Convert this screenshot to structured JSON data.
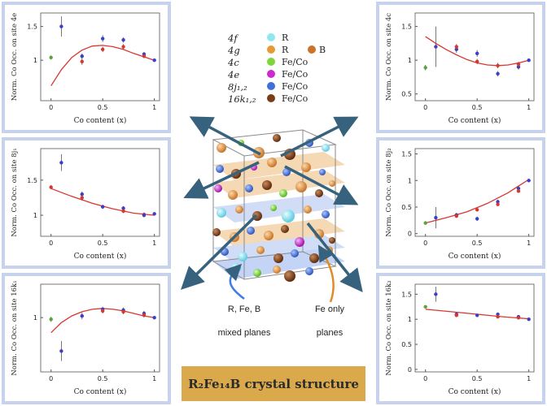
{
  "title": "R₂Fe₁₄B crystal structure",
  "legend": {
    "rows": [
      {
        "site": "4f",
        "label": "R",
        "color": "#8fe6f0"
      },
      {
        "site": "4g",
        "label": "R",
        "color": "#e79a35",
        "label2": "B",
        "color2": "#c9742a"
      },
      {
        "site": "4c",
        "label": "Fe/Co",
        "color": "#7fd63c"
      },
      {
        "site": "4e",
        "label": "Fe/Co",
        "color": "#cc2ad0"
      },
      {
        "site": "8j₁,₂",
        "label": "Fe/Co",
        "color": "#3f6fd8"
      },
      {
        "site": "16k₁,₂",
        "label": "Fe/Co",
        "color": "#7a3c16"
      }
    ]
  },
  "plane_labels": {
    "mixed_line1": "R, Fe, B",
    "mixed_line2": "mixed planes",
    "fe_line1": "Fe only",
    "fe_line2": "planes"
  },
  "colors": {
    "panel_border": "#c7d3ec",
    "fit": "#d9362f",
    "red": "#d9362f",
    "blue": "#3b3fc9",
    "green": "#5aa23c",
    "title_bg": "#d9a94c",
    "arrow": "#37627d"
  },
  "chart_data": [
    {
      "id": "4e",
      "type": "scatter",
      "ylabel": "Norm. Co Occ. on site 4e",
      "xlabel": "Co content (x)",
      "xticks": [
        "0",
        "0.5",
        "1"
      ],
      "yticks": [
        "1",
        "1.5"
      ],
      "ylim": [
        0.4,
        1.7
      ],
      "xlim": [
        -0.1,
        1.05
      ],
      "fit": [
        [
          0,
          0.62
        ],
        [
          0.1,
          0.86
        ],
        [
          0.2,
          1.04
        ],
        [
          0.3,
          1.15
        ],
        [
          0.4,
          1.21
        ],
        [
          0.5,
          1.22
        ],
        [
          0.6,
          1.2
        ],
        [
          0.7,
          1.16
        ],
        [
          0.8,
          1.1
        ],
        [
          0.9,
          1.05
        ],
        [
          1,
          1.0
        ]
      ],
      "points": [
        {
          "x": 0,
          "y": 1.04,
          "c": "green",
          "e": 0.03
        },
        {
          "x": 0.1,
          "y": 1.5,
          "c": "blue",
          "e": 0.15
        },
        {
          "x": 0.3,
          "y": 0.98,
          "c": "red",
          "e": 0.05
        },
        {
          "x": 0.3,
          "y": 1.06,
          "c": "blue",
          "e": 0.04
        },
        {
          "x": 0.5,
          "y": 1.32,
          "c": "blue",
          "e": 0.05
        },
        {
          "x": 0.5,
          "y": 1.16,
          "c": "red",
          "e": 0.04
        },
        {
          "x": 0.7,
          "y": 1.3,
          "c": "blue",
          "e": 0.04
        },
        {
          "x": 0.7,
          "y": 1.2,
          "c": "red",
          "e": 0.04
        },
        {
          "x": 0.9,
          "y": 1.09,
          "c": "blue",
          "e": 0.03
        },
        {
          "x": 0.9,
          "y": 1.06,
          "c": "red",
          "e": 0.03
        },
        {
          "x": 1,
          "y": 1.0,
          "c": "blue",
          "e": 0.02
        }
      ]
    },
    {
      "id": "8j1",
      "type": "scatter",
      "ylabel": "Norm. Co Occ. on site 8j₁",
      "xlabel": "Co content (x)",
      "xticks": [
        "0",
        "0.5",
        "1"
      ],
      "yticks": [
        "1",
        "1.5"
      ],
      "ylim": [
        0.7,
        1.95
      ],
      "xlim": [
        -0.1,
        1.05
      ],
      "fit": [
        [
          0,
          1.38
        ],
        [
          0.2,
          1.27
        ],
        [
          0.4,
          1.17
        ],
        [
          0.6,
          1.09
        ],
        [
          0.8,
          1.03
        ],
        [
          1,
          1.0
        ]
      ],
      "points": [
        {
          "x": 0,
          "y": 1.4,
          "c": "red",
          "e": 0.03
        },
        {
          "x": 0.1,
          "y": 1.75,
          "c": "blue",
          "e": 0.12
        },
        {
          "x": 0.3,
          "y": 1.3,
          "c": "blue",
          "e": 0.04
        },
        {
          "x": 0.3,
          "y": 1.25,
          "c": "red",
          "e": 0.04
        },
        {
          "x": 0.5,
          "y": 1.12,
          "c": "blue",
          "e": 0.03
        },
        {
          "x": 0.7,
          "y": 1.1,
          "c": "blue",
          "e": 0.03
        },
        {
          "x": 0.7,
          "y": 1.06,
          "c": "red",
          "e": 0.03
        },
        {
          "x": 0.9,
          "y": 1.01,
          "c": "red",
          "e": 0.03
        },
        {
          "x": 0.9,
          "y": 1.0,
          "c": "blue",
          "e": 0.03
        },
        {
          "x": 1,
          "y": 1.02,
          "c": "blue",
          "e": 0.02
        }
      ]
    },
    {
      "id": "16k1",
      "type": "scatter",
      "ylabel": "Norm. Co Occ. on site 16k₁",
      "xlabel": "Co content (x)",
      "xticks": [
        "0",
        "0.5",
        "1"
      ],
      "yticks": [
        "1"
      ],
      "ylim": [
        0.35,
        1.4
      ],
      "xlim": [
        -0.1,
        1.05
      ],
      "fit": [
        [
          0,
          0.82
        ],
        [
          0.1,
          0.94
        ],
        [
          0.2,
          1.02
        ],
        [
          0.3,
          1.07
        ],
        [
          0.4,
          1.1
        ],
        [
          0.5,
          1.11
        ],
        [
          0.6,
          1.1
        ],
        [
          0.7,
          1.08
        ],
        [
          0.8,
          1.05
        ],
        [
          0.9,
          1.02
        ],
        [
          1,
          1.0
        ]
      ],
      "points": [
        {
          "x": 0,
          "y": 0.98,
          "c": "green",
          "e": 0.03
        },
        {
          "x": 0.1,
          "y": 0.6,
          "c": "blue",
          "e": 0.12
        },
        {
          "x": 0.3,
          "y": 1.02,
          "c": "blue",
          "e": 0.04
        },
        {
          "x": 0.5,
          "y": 1.1,
          "c": "blue",
          "e": 0.03
        },
        {
          "x": 0.5,
          "y": 1.08,
          "c": "red",
          "e": 0.03
        },
        {
          "x": 0.7,
          "y": 1.09,
          "c": "blue",
          "e": 0.03
        },
        {
          "x": 0.7,
          "y": 1.07,
          "c": "red",
          "e": 0.03
        },
        {
          "x": 0.9,
          "y": 1.05,
          "c": "blue",
          "e": 0.03
        },
        {
          "x": 0.9,
          "y": 1.03,
          "c": "red",
          "e": 0.03
        },
        {
          "x": 1,
          "y": 1.0,
          "c": "blue",
          "e": 0.02
        }
      ]
    },
    {
      "id": "4c",
      "type": "scatter",
      "ylabel": "Norm. Co Occ. on site 4c",
      "xlabel": "Co content (x)",
      "xticks": [
        "0",
        "0.5",
        "1"
      ],
      "yticks": [
        "0.5",
        "1",
        "1.5"
      ],
      "ylim": [
        0.4,
        1.7
      ],
      "xlim": [
        -0.1,
        1.05
      ],
      "fit": [
        [
          0,
          1.35
        ],
        [
          0.1,
          1.25
        ],
        [
          0.2,
          1.16
        ],
        [
          0.3,
          1.08
        ],
        [
          0.4,
          1.01
        ],
        [
          0.5,
          0.96
        ],
        [
          0.6,
          0.93
        ],
        [
          0.7,
          0.92
        ],
        [
          0.8,
          0.93
        ],
        [
          0.9,
          0.96
        ],
        [
          1,
          1.0
        ]
      ],
      "points": [
        {
          "x": 0,
          "y": 0.89,
          "c": "green",
          "e": 0.04
        },
        {
          "x": 0.1,
          "y": 1.2,
          "c": "blue",
          "e": 0.3
        },
        {
          "x": 0.3,
          "y": 1.16,
          "c": "blue",
          "e": 0.05
        },
        {
          "x": 0.3,
          "y": 1.2,
          "c": "red",
          "e": 0.04
        },
        {
          "x": 0.5,
          "y": 1.1,
          "c": "blue",
          "e": 0.05
        },
        {
          "x": 0.5,
          "y": 0.98,
          "c": "red",
          "e": 0.04
        },
        {
          "x": 0.7,
          "y": 0.8,
          "c": "blue",
          "e": 0.04
        },
        {
          "x": 0.7,
          "y": 0.92,
          "c": "red",
          "e": 0.04
        },
        {
          "x": 0.9,
          "y": 0.9,
          "c": "blue",
          "e": 0.04
        },
        {
          "x": 0.9,
          "y": 0.94,
          "c": "red",
          "e": 0.04
        },
        {
          "x": 1,
          "y": 1.0,
          "c": "blue",
          "e": 0.02
        }
      ]
    },
    {
      "id": "8j2",
      "type": "scatter",
      "ylabel": "Norm. Co Occ. on site 8j₂",
      "xlabel": "Co content (x)",
      "xticks": [
        "0",
        "0.5",
        "1"
      ],
      "yticks": [
        "0",
        "0.5",
        "1",
        "1.5"
      ],
      "ylim": [
        -0.05,
        1.6
      ],
      "xlim": [
        -0.1,
        1.05
      ],
      "fit": [
        [
          0,
          0.2
        ],
        [
          0.2,
          0.3
        ],
        [
          0.4,
          0.41
        ],
        [
          0.6,
          0.57
        ],
        [
          0.8,
          0.77
        ],
        [
          1,
          1.02
        ]
      ],
      "points": [
        {
          "x": 0,
          "y": 0.2,
          "c": "green",
          "e": 0.03
        },
        {
          "x": 0.1,
          "y": 0.3,
          "c": "blue",
          "e": 0.2
        },
        {
          "x": 0.3,
          "y": 0.35,
          "c": "blue",
          "e": 0.04
        },
        {
          "x": 0.3,
          "y": 0.33,
          "c": "red",
          "e": 0.03
        },
        {
          "x": 0.5,
          "y": 0.45,
          "c": "red",
          "e": 0.03
        },
        {
          "x": 0.5,
          "y": 0.28,
          "c": "blue",
          "e": 0.04
        },
        {
          "x": 0.7,
          "y": 0.6,
          "c": "blue",
          "e": 0.04
        },
        {
          "x": 0.7,
          "y": 0.55,
          "c": "red",
          "e": 0.03
        },
        {
          "x": 0.9,
          "y": 0.85,
          "c": "blue",
          "e": 0.04
        },
        {
          "x": 0.9,
          "y": 0.8,
          "c": "red",
          "e": 0.03
        },
        {
          "x": 1,
          "y": 1.0,
          "c": "blue",
          "e": 0.02
        }
      ]
    },
    {
      "id": "16k2",
      "type": "scatter",
      "ylabel": "Norm. Co Occ. on site 16k₂",
      "xlabel": "Co content (x)",
      "xticks": [
        "0",
        "0.5",
        "1"
      ],
      "yticks": [
        "0",
        "0.5",
        "1",
        "1.5"
      ],
      "ylim": [
        -0.05,
        1.7
      ],
      "xlim": [
        -0.1,
        1.05
      ],
      "fit": [
        [
          0,
          1.2
        ],
        [
          0.25,
          1.15
        ],
        [
          0.5,
          1.1
        ],
        [
          0.75,
          1.05
        ],
        [
          1,
          1.01
        ]
      ],
      "points": [
        {
          "x": 0,
          "y": 1.25,
          "c": "green",
          "e": 0.03
        },
        {
          "x": 0.1,
          "y": 1.5,
          "c": "blue",
          "e": 0.15
        },
        {
          "x": 0.3,
          "y": 1.1,
          "c": "blue",
          "e": 0.03
        },
        {
          "x": 0.3,
          "y": 1.08,
          "c": "red",
          "e": 0.03
        },
        {
          "x": 0.5,
          "y": 1.08,
          "c": "blue",
          "e": 0.03
        },
        {
          "x": 0.7,
          "y": 1.1,
          "c": "blue",
          "e": 0.03
        },
        {
          "x": 0.7,
          "y": 1.05,
          "c": "red",
          "e": 0.03
        },
        {
          "x": 0.9,
          "y": 1.05,
          "c": "blue",
          "e": 0.03
        },
        {
          "x": 0.9,
          "y": 1.03,
          "c": "red",
          "e": 0.03
        },
        {
          "x": 1,
          "y": 1.0,
          "c": "blue",
          "e": 0.02
        }
      ]
    }
  ]
}
